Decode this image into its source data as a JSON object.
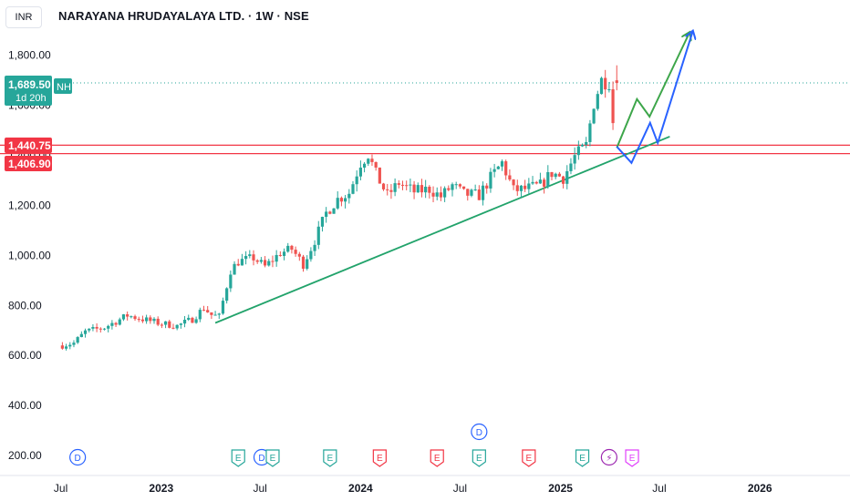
{
  "header": {
    "currency": "INR",
    "title": "NARAYANA HRUDAYALAYA LTD. · 1W · NSE"
  },
  "price_tags": {
    "last_price": "1,689.50",
    "countdown": "1d 20h",
    "nh_label": "NH",
    "resistance_upper": "1,440.75",
    "resistance_lower": "1,406.90"
  },
  "colors": {
    "up": "#26a69a",
    "down": "#ef5350",
    "trendline": "#22a36b",
    "projection_green": "#3da64a",
    "projection_blue": "#2962ff",
    "resistance": "#f23645",
    "price_tag": "#26a69a",
    "event_dividend": "#2962ff",
    "event_earnings_pos": "#26a69a",
    "event_earnings_neg": "#f23645",
    "event_split": "#9c27b0",
    "event_earnings_future": "#e040fb"
  },
  "chart_data": {
    "type": "candlestick",
    "title": "NARAYANA HRUDAYALAYA LTD. · 1W · NSE",
    "interval": "1W",
    "currency": "INR",
    "ylim": [
      120,
      1890
    ],
    "y_ticks": [
      {
        "value": 200,
        "label": "200.00"
      },
      {
        "value": 400,
        "label": "400.00"
      },
      {
        "value": 600,
        "label": "600.00"
      },
      {
        "value": 800,
        "label": "800.00"
      },
      {
        "value": 1000,
        "label": "1,000.00"
      },
      {
        "value": 1200,
        "label": "1,200.00"
      },
      {
        "value": 1400,
        "label": "1,400.00"
      },
      {
        "value": 1600,
        "label": "1,600.00"
      },
      {
        "value": 1800,
        "label": "1,800.00"
      }
    ],
    "xlim": [
      "2022-06-20",
      "2026-06-15"
    ],
    "x_ticks": [
      {
        "date": "2022-07-01",
        "label": "Jul"
      },
      {
        "date": "2023-01-01",
        "label": "2023"
      },
      {
        "date": "2023-07-01",
        "label": "Jul"
      },
      {
        "date": "2024-01-01",
        "label": "2024"
      },
      {
        "date": "2024-07-01",
        "label": "Jul"
      },
      {
        "date": "2025-01-01",
        "label": "2025"
      },
      {
        "date": "2025-07-01",
        "label": "Jul"
      },
      {
        "date": "2026-01-01",
        "label": "2026"
      }
    ],
    "anchors": [
      [
        "2022-07-04",
        640
      ],
      [
        "2022-07-25",
        650
      ],
      [
        "2022-08-15",
        695
      ],
      [
        "2022-09-19",
        712
      ],
      [
        "2022-10-31",
        760
      ],
      [
        "2022-11-28",
        745
      ],
      [
        "2022-12-26",
        730
      ],
      [
        "2023-01-30",
        718
      ],
      [
        "2023-02-27",
        745
      ],
      [
        "2023-03-20",
        790
      ],
      [
        "2023-04-03",
        762
      ],
      [
        "2023-04-17",
        755
      ],
      [
        "2023-05-08",
        940
      ],
      [
        "2023-05-22",
        975
      ],
      [
        "2023-06-19",
        990
      ],
      [
        "2023-07-10",
        955
      ],
      [
        "2023-08-07",
        1010
      ],
      [
        "2023-08-28",
        1025
      ],
      [
        "2023-09-18",
        965
      ],
      [
        "2023-10-09",
        1060
      ],
      [
        "2023-10-30",
        1170
      ],
      [
        "2023-11-20",
        1225
      ],
      [
        "2023-12-11",
        1250
      ],
      [
        "2024-01-01",
        1370
      ],
      [
        "2024-01-15",
        1405
      ],
      [
        "2024-01-29",
        1325
      ],
      [
        "2024-02-19",
        1240
      ],
      [
        "2024-03-11",
        1290
      ],
      [
        "2024-04-08",
        1255
      ],
      [
        "2024-05-06",
        1265
      ],
      [
        "2024-05-27",
        1235
      ],
      [
        "2024-06-17",
        1280
      ],
      [
        "2024-07-08",
        1245
      ],
      [
        "2024-08-05",
        1240
      ],
      [
        "2024-08-26",
        1310
      ],
      [
        "2024-09-16",
        1370
      ],
      [
        "2024-10-07",
        1260
      ],
      [
        "2024-10-28",
        1265
      ],
      [
        "2024-11-25",
        1280
      ],
      [
        "2024-12-16",
        1330
      ],
      [
        "2025-01-06",
        1310
      ],
      [
        "2025-01-27",
        1395
      ],
      [
        "2025-02-17",
        1440
      ],
      [
        "2025-03-03",
        1610
      ],
      [
        "2025-03-17",
        1700
      ],
      [
        "2025-03-31",
        1695
      ],
      [
        "2025-04-07",
        1535
      ],
      [
        "2025-04-14",
        1500
      ]
    ],
    "last_close": 1689.5,
    "high_marker": 1760,
    "resistance_levels": [
      1440.75,
      1406.9
    ],
    "trendline": [
      [
        "2023-04-10",
        730
      ],
      [
        "2025-07-20",
        1475
      ]
    ],
    "projections": [
      {
        "color": "green",
        "points": [
          [
            "2025-04-14",
            1430
          ],
          [
            "2025-05-21",
            1625
          ],
          [
            "2025-06-13",
            1555
          ],
          [
            "2025-08-25",
            1890
          ]
        ]
      },
      {
        "color": "blue",
        "points": [
          [
            "2025-04-14",
            1435
          ],
          [
            "2025-05-11",
            1370
          ],
          [
            "2025-06-14",
            1530
          ],
          [
            "2025-06-28",
            1450
          ],
          [
            "2025-08-31",
            1895
          ]
        ]
      }
    ],
    "events": [
      {
        "date": "2022-08-01",
        "label": "D",
        "kind": "dividend",
        "row": 1
      },
      {
        "date": "2023-05-22",
        "label": "E",
        "kind": "earnings_pos",
        "row": 1
      },
      {
        "date": "2023-07-04",
        "label": "D",
        "kind": "dividend",
        "row": 1
      },
      {
        "date": "2023-07-24",
        "label": "E",
        "kind": "earnings_pos",
        "row": 1
      },
      {
        "date": "2023-11-06",
        "label": "E",
        "kind": "earnings_pos",
        "row": 1
      },
      {
        "date": "2024-02-05",
        "label": "E",
        "kind": "earnings_neg",
        "row": 1
      },
      {
        "date": "2024-05-20",
        "label": "E",
        "kind": "earnings_neg",
        "row": 1
      },
      {
        "date": "2024-08-05",
        "label": "E",
        "kind": "earnings_pos",
        "row": 1
      },
      {
        "date": "2024-08-05",
        "label": "D",
        "kind": "dividend",
        "row": 2
      },
      {
        "date": "2024-11-04",
        "label": "E",
        "kind": "earnings_neg",
        "row": 1
      },
      {
        "date": "2025-02-10",
        "label": "E",
        "kind": "earnings_pos",
        "row": 1
      },
      {
        "date": "2025-03-31",
        "label": "⚡",
        "kind": "split",
        "row": 1
      },
      {
        "date": "2025-05-12",
        "label": "E",
        "kind": "earnings_future",
        "row": 1
      }
    ]
  }
}
